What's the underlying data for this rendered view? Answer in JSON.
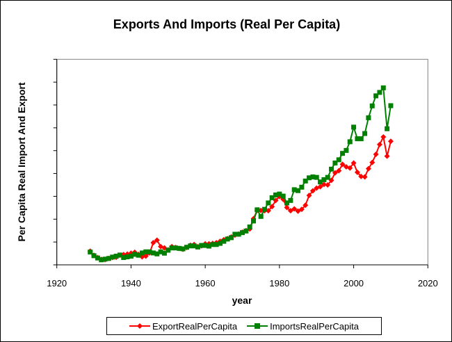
{
  "chart_data": {
    "type": "line",
    "title": "Exports And Imports (Real Per Capita)",
    "xlabel": "year",
    "ylabel": "Per Capita Real Import And Export",
    "xlim": [
      1920,
      2020
    ],
    "xticks": [
      1920,
      1940,
      1960,
      1980,
      2000,
      2020
    ],
    "ylim": [
      0,
      9
    ],
    "yticks_count": 10,
    "ytick_labels_shown": false,
    "grid": false,
    "legend": "bottom",
    "x": [
      1929,
      1930,
      1931,
      1932,
      1933,
      1934,
      1935,
      1936,
      1937,
      1938,
      1939,
      1940,
      1941,
      1942,
      1943,
      1944,
      1945,
      1946,
      1947,
      1948,
      1949,
      1950,
      1951,
      1952,
      1953,
      1954,
      1955,
      1956,
      1957,
      1958,
      1959,
      1960,
      1961,
      1962,
      1963,
      1964,
      1965,
      1966,
      1967,
      1968,
      1969,
      1970,
      1971,
      1972,
      1973,
      1974,
      1975,
      1976,
      1977,
      1978,
      1979,
      1980,
      1981,
      1982,
      1983,
      1984,
      1985,
      1986,
      1987,
      1988,
      1989,
      1990,
      1991,
      1992,
      1993,
      1994,
      1995,
      1996,
      1997,
      1998,
      1999,
      2000,
      2001,
      2002,
      2003,
      2004,
      2005,
      2006,
      2007,
      2008,
      2009,
      2010
    ],
    "series": [
      {
        "name": "ExportRealPerCapita",
        "color": "#ff0000",
        "marker": "diamond",
        "values": [
          0.6,
          0.42,
          0.32,
          0.24,
          0.23,
          0.28,
          0.32,
          0.33,
          0.42,
          0.45,
          0.47,
          0.51,
          0.55,
          0.46,
          0.35,
          0.38,
          0.52,
          0.97,
          1.08,
          0.8,
          0.74,
          0.66,
          0.8,
          0.76,
          0.72,
          0.68,
          0.76,
          0.86,
          0.89,
          0.8,
          0.83,
          0.92,
          0.92,
          0.94,
          0.97,
          1.03,
          1.1,
          1.15,
          1.22,
          1.3,
          1.35,
          1.43,
          1.5,
          1.57,
          2.02,
          2.38,
          2.38,
          2.37,
          2.37,
          2.55,
          2.82,
          2.99,
          2.87,
          2.51,
          2.37,
          2.45,
          2.35,
          2.43,
          2.61,
          3.04,
          3.24,
          3.36,
          3.42,
          3.52,
          3.5,
          3.7,
          4.03,
          4.12,
          4.4,
          4.29,
          4.24,
          4.46,
          4.05,
          3.87,
          3.85,
          4.21,
          4.48,
          4.84,
          5.27,
          5.6,
          4.76,
          5.41
        ]
      },
      {
        "name": "ImportsRealPerCapita",
        "color": "#008000",
        "marker": "square",
        "values": [
          0.56,
          0.4,
          0.3,
          0.22,
          0.25,
          0.28,
          0.34,
          0.38,
          0.43,
          0.32,
          0.35,
          0.38,
          0.46,
          0.42,
          0.52,
          0.57,
          0.57,
          0.52,
          0.48,
          0.57,
          0.51,
          0.64,
          0.74,
          0.74,
          0.72,
          0.7,
          0.77,
          0.83,
          0.83,
          0.78,
          0.85,
          0.85,
          0.82,
          0.89,
          0.89,
          0.94,
          1.03,
          1.13,
          1.19,
          1.34,
          1.34,
          1.41,
          1.48,
          1.66,
          1.92,
          2.41,
          2.12,
          2.43,
          2.71,
          2.94,
          3.06,
          3.1,
          3.01,
          2.71,
          2.82,
          3.29,
          3.25,
          3.4,
          3.67,
          3.81,
          3.85,
          3.83,
          3.63,
          3.73,
          3.83,
          4.19,
          4.46,
          4.6,
          4.88,
          5.01,
          5.39,
          6.03,
          5.52,
          5.52,
          5.75,
          6.44,
          6.96,
          7.4,
          7.55,
          7.75,
          5.96,
          6.97
        ]
      }
    ]
  }
}
